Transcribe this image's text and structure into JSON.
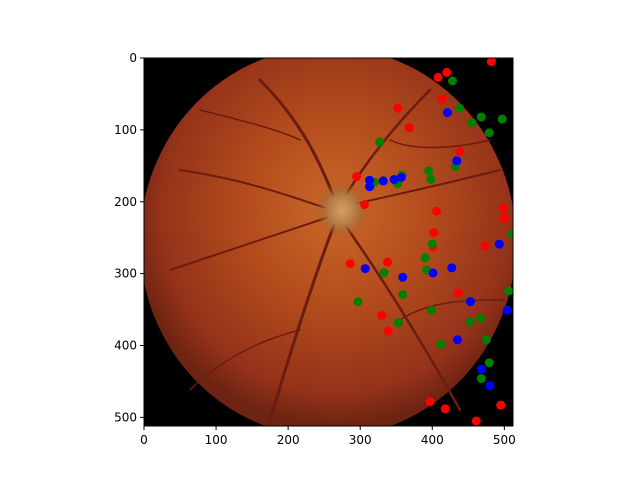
{
  "chart_data": {
    "type": "scatter",
    "background": "fundus retinal photograph (optic disc with branching vessels)",
    "xlim": [
      0,
      512
    ],
    "ylim": [
      512,
      0
    ],
    "x_ticks": [
      "0",
      "100",
      "200",
      "300",
      "400",
      "500"
    ],
    "y_ticks": [
      "0",
      "100",
      "200",
      "300",
      "400",
      "500"
    ],
    "grid": false,
    "legend": "none",
    "series": [
      {
        "color": "#ff0000",
        "points": [
          [
            482,
            5
          ],
          [
            420,
            20
          ],
          [
            408,
            27
          ],
          [
            414,
            57
          ],
          [
            352,
            70
          ],
          [
            368,
            97
          ],
          [
            438,
            130
          ],
          [
            295,
            165
          ],
          [
            306,
            204
          ],
          [
            406,
            213
          ],
          [
            402,
            243
          ],
          [
            401,
            263
          ],
          [
            473,
            261
          ],
          [
            498,
            209
          ],
          [
            500,
            223
          ],
          [
            286,
            286
          ],
          [
            338,
            284
          ],
          [
            436,
            327
          ],
          [
            330,
            358
          ],
          [
            339,
            380
          ],
          [
            397,
            478
          ],
          [
            418,
            488
          ],
          [
            461,
            505
          ],
          [
            495,
            483
          ]
        ]
      },
      {
        "color": "#008000",
        "points": [
          [
            428,
            32
          ],
          [
            438,
            70
          ],
          [
            455,
            90
          ],
          [
            468,
            82
          ],
          [
            497,
            85
          ],
          [
            479,
            104
          ],
          [
            327,
            117
          ],
          [
            320,
            173
          ],
          [
            352,
            175
          ],
          [
            358,
            163
          ],
          [
            395,
            157
          ],
          [
            398,
            169
          ],
          [
            432,
            151
          ],
          [
            511,
            245
          ],
          [
            400,
            259
          ],
          [
            390,
            278
          ],
          [
            392,
            295
          ],
          [
            333,
            299
          ],
          [
            359,
            329
          ],
          [
            297,
            339
          ],
          [
            399,
            351
          ],
          [
            353,
            368
          ],
          [
            412,
            398
          ],
          [
            452,
            367
          ],
          [
            467,
            362
          ],
          [
            475,
            392
          ],
          [
            479,
            424
          ],
          [
            468,
            446
          ],
          [
            506,
            324
          ]
        ]
      },
      {
        "color": "#0000ff",
        "points": [
          [
            421,
            76
          ],
          [
            434,
            143
          ],
          [
            313,
            179
          ],
          [
            313,
            170
          ],
          [
            332,
            171
          ],
          [
            347,
            169
          ],
          [
            357,
            166
          ],
          [
            493,
            259
          ],
          [
            307,
            293
          ],
          [
            401,
            299
          ],
          [
            359,
            305
          ],
          [
            427,
            292
          ],
          [
            453,
            339
          ],
          [
            435,
            392
          ],
          [
            504,
            351
          ],
          [
            468,
            433
          ],
          [
            480,
            456
          ]
        ]
      }
    ]
  }
}
